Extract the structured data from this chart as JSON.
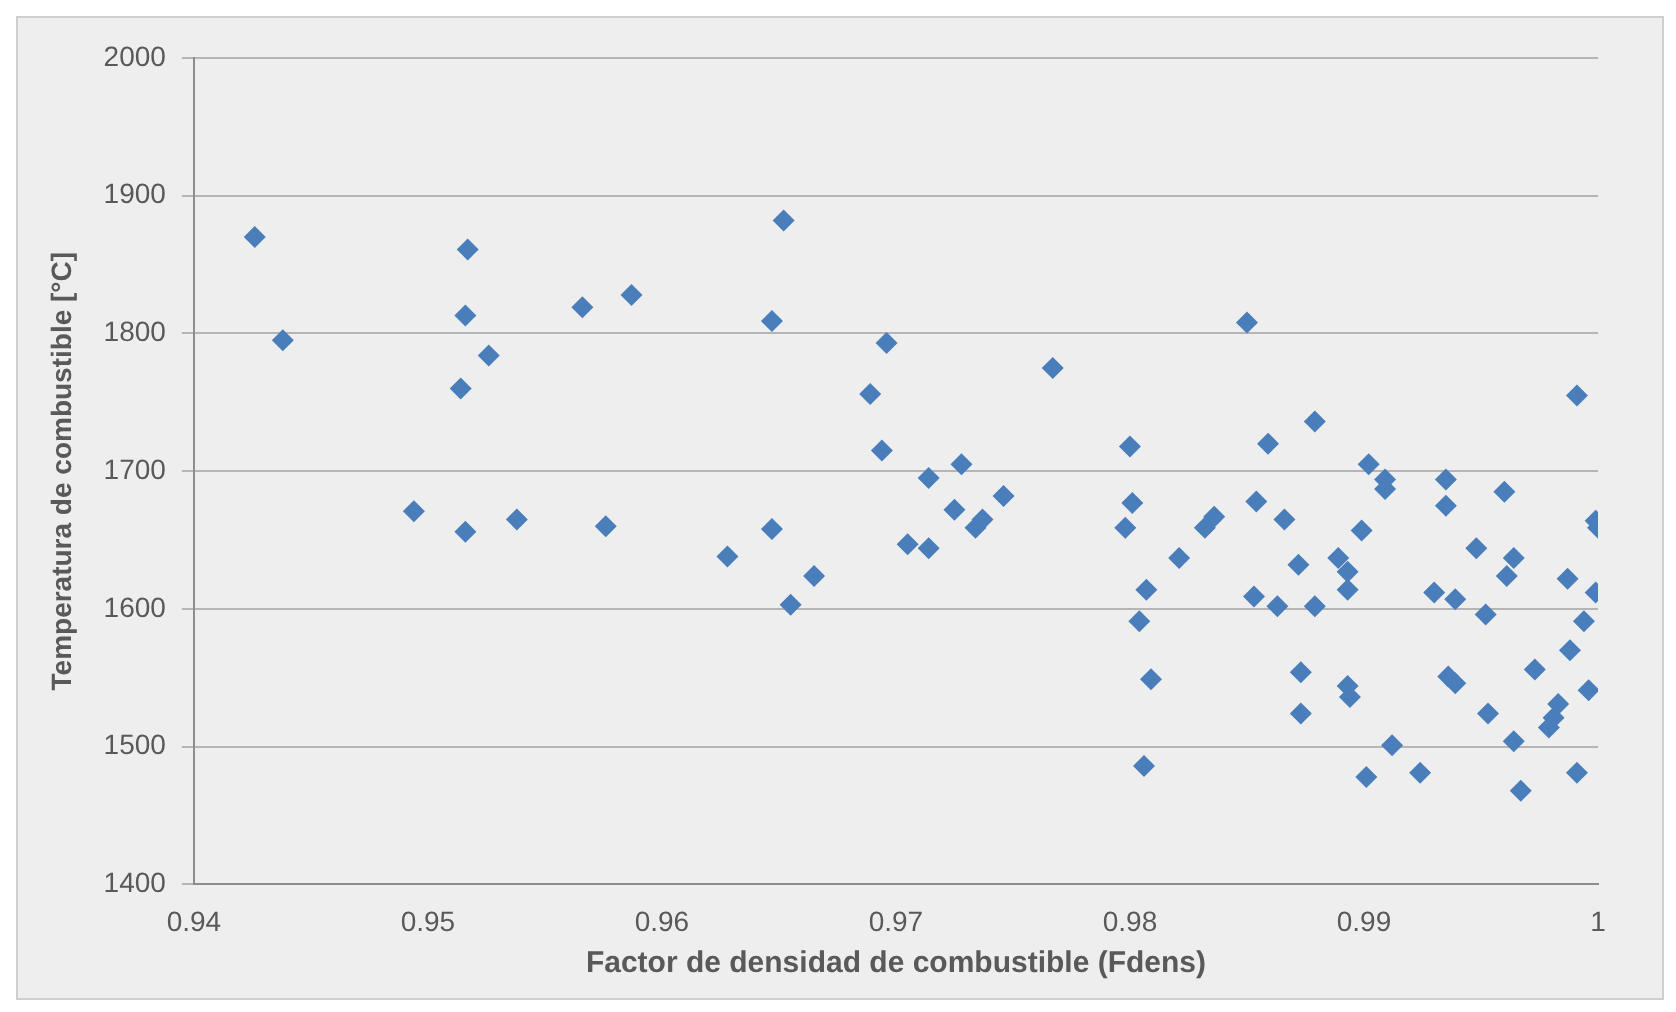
{
  "chart_data": {
    "type": "scatter",
    "xlabel": "Factor de densidad de combustible (Fdens)",
    "ylabel": "Temperatura de combustible [°C]",
    "xlim": [
      0.94,
      1
    ],
    "xticks": [
      0.94,
      0.95,
      0.96,
      0.97,
      0.98,
      0.99,
      1
    ],
    "ylim": [
      1400,
      2000
    ],
    "yticks": [
      1400,
      1500,
      1600,
      1700,
      1800,
      1900,
      2000
    ],
    "grid": "y",
    "marker": "diamond",
    "legend": false,
    "series": [
      {
        "color": "#4a7ebb",
        "x": [
          0.9426,
          0.9438,
          0.9517,
          0.9516,
          0.9526,
          0.9514,
          0.9566,
          0.9587,
          0.9652,
          0.9647,
          0.9696,
          0.9689,
          0.9694,
          0.9494,
          0.9516,
          0.9538,
          0.9576,
          0.9628,
          0.9647,
          0.9665,
          0.9655,
          0.9767,
          0.985,
          0.9991,
          0.98,
          0.9859,
          0.9879,
          0.9714,
          0.9728,
          0.9746,
          0.9725,
          0.9734,
          0.9737,
          0.9705,
          0.9714,
          0.9801,
          0.9798,
          0.9836,
          0.9832,
          0.9821,
          0.9854,
          0.9866,
          0.9872,
          0.9889,
          0.9893,
          0.9893,
          0.9899,
          0.9902,
          0.9909,
          0.9909,
          0.9935,
          0.9935,
          0.996,
          0.9999,
          1.0,
          0.9948,
          0.9964,
          0.9961,
          0.9987,
          0.9999,
          0.9994,
          0.9807,
          0.9804,
          0.9853,
          0.9863,
          0.9879,
          0.993,
          0.9939,
          0.9952,
          0.9809,
          0.9873,
          0.9873,
          0.9893,
          0.9894,
          0.9936,
          0.9939,
          0.9953,
          0.9973,
          0.9988,
          0.9996,
          0.9983,
          0.9981,
          0.9979,
          0.9964,
          0.9912,
          0.9901,
          0.9924,
          0.9967,
          0.9991,
          0.9806
        ],
        "values": [
          1870,
          1795,
          1861,
          1813,
          1784,
          1760,
          1819,
          1828,
          1882,
          1809,
          1793,
          1756,
          1715,
          1671,
          1656,
          1665,
          1660,
          1638,
          1658,
          1624,
          1603,
          1775,
          1808,
          1755,
          1718,
          1720,
          1736,
          1695,
          1705,
          1682,
          1672,
          1659,
          1665,
          1647,
          1644,
          1677,
          1659,
          1667,
          1659,
          1637,
          1678,
          1665,
          1632,
          1637,
          1627,
          1614,
          1657,
          1705,
          1694,
          1687,
          1694,
          1675,
          1685,
          1664,
          1659,
          1644,
          1637,
          1624,
          1622,
          1612,
          1591,
          1614,
          1591,
          1609,
          1602,
          1602,
          1612,
          1607,
          1596,
          1549,
          1554,
          1524,
          1544,
          1536,
          1551,
          1546,
          1524,
          1556,
          1570,
          1541,
          1531,
          1521,
          1514,
          1504,
          1501,
          1478,
          1481,
          1468,
          1481,
          1486
        ]
      }
    ]
  }
}
